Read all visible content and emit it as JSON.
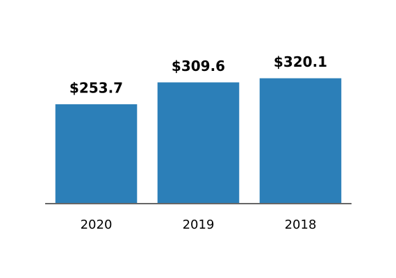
{
  "chart_data": {
    "type": "bar",
    "categories": [
      "2020",
      "2019",
      "2018"
    ],
    "values": [
      253.7,
      309.6,
      320.1
    ],
    "value_labels": [
      "$253.7",
      "$309.6",
      "$320.1"
    ],
    "color": "#2c7fb8"
  }
}
